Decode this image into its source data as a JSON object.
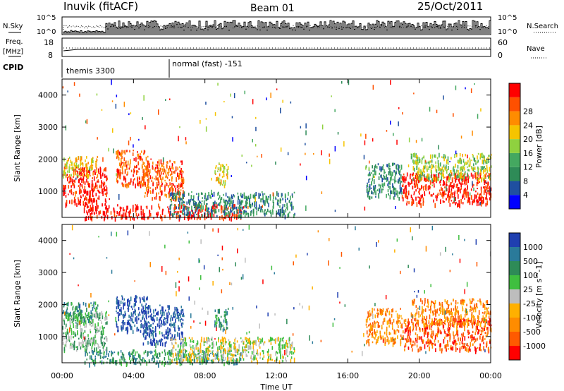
{
  "header": {
    "radar": "Inuvik (fitACF)",
    "beam": "Beam 01",
    "date": "25/Oct/2011"
  },
  "nsky_panel": {
    "left_label": "N.Sky",
    "left_ticks": [
      "10^5",
      "10^0"
    ],
    "right_ticks": [
      "10^5",
      "10^0"
    ],
    "right_label": "N.Search"
  },
  "freq_panel": {
    "left_label_top": "Freq.",
    "left_label_bottom": "[MHz]",
    "left_ticks": [
      "18",
      "8"
    ],
    "right_ticks": [
      "60",
      "0"
    ],
    "right_label": "Nave"
  },
  "cpid_panel": {
    "label": "CPID",
    "segments": [
      {
        "name": "themis 3300",
        "start_hour": 0
      },
      {
        "name": "normal (fast) -151",
        "start_hour": 6
      }
    ]
  },
  "x_axis": {
    "label": "Time UT",
    "ticks": [
      "00:00",
      "04:00",
      "08:00",
      "12:00",
      "16:00",
      "20:00",
      "00:00"
    ],
    "range_hours": [
      0,
      24
    ]
  },
  "colors": {
    "power": [
      "#0000ff",
      "#1f4fa0",
      "#2e8b57",
      "#44a860",
      "#8fd13f",
      "#f5c400",
      "#ff8c00",
      "#ff5000",
      "#ff0000"
    ],
    "velocity": [
      "#ff0000",
      "#ff5a00",
      "#ff8c00",
      "#ffb000",
      "#bdbdbd",
      "#3fbf3f",
      "#2e8b57",
      "#2a7a9a",
      "#1f3fb0"
    ]
  },
  "chart_data": [
    {
      "type": "heatmap",
      "panel": "power",
      "ylabel": "Slant Range [km]",
      "ylim": [
        180,
        4500
      ],
      "yticks": [
        1000,
        2000,
        3000,
        4000
      ],
      "xlim": [
        0,
        24
      ],
      "colorbar": {
        "label": "Power [dB]",
        "ticks": [
          "4",
          "8",
          "12",
          "16",
          "20",
          "24",
          "28"
        ]
      },
      "regions": [
        {
          "t0": 0.0,
          "t1": 2.5,
          "r0": 600,
          "r1": 1800,
          "level": 8
        },
        {
          "t0": 0.0,
          "t1": 2.0,
          "r0": 1500,
          "r1": 2100,
          "level": 5
        },
        {
          "t0": 1.2,
          "t1": 10.0,
          "r0": 180,
          "r1": 600,
          "level": 8
        },
        {
          "t0": 3.0,
          "t1": 4.8,
          "r0": 1200,
          "r1": 2300,
          "level": 7
        },
        {
          "t0": 4.5,
          "t1": 6.8,
          "r0": 800,
          "r1": 2000,
          "level": 7
        },
        {
          "t0": 8.5,
          "t1": 9.3,
          "r0": 1200,
          "r1": 1900,
          "level": 5
        },
        {
          "t0": 6.0,
          "t1": 13.0,
          "r0": 250,
          "r1": 1000,
          "level": 2
        },
        {
          "t0": 19.0,
          "t1": 24.0,
          "r0": 600,
          "r1": 1600,
          "level": 8
        },
        {
          "t0": 19.5,
          "t1": 24.0,
          "r0": 1400,
          "r1": 2200,
          "level": 4
        },
        {
          "t0": 17.0,
          "t1": 19.0,
          "r0": 800,
          "r1": 1900,
          "level": 2
        }
      ]
    },
    {
      "type": "heatmap",
      "panel": "velocity",
      "ylabel": "Slant Range [km]",
      "ylim": [
        180,
        4500
      ],
      "yticks": [
        1000,
        2000,
        3000,
        4000
      ],
      "xlim": [
        0,
        24
      ],
      "colorbar": {
        "label": "Velocity [m s^-1]",
        "ticks": [
          "1000",
          "500",
          "100",
          "25",
          "-25",
          "-100",
          "-500",
          "-1000"
        ]
      },
      "regions": [
        {
          "t0": 0.0,
          "t1": 2.5,
          "r0": 600,
          "r1": 1800,
          "level": 5
        },
        {
          "t0": 0.0,
          "t1": 2.0,
          "r0": 1500,
          "r1": 2100,
          "level": 6
        },
        {
          "t0": 1.2,
          "t1": 10.0,
          "r0": 180,
          "r1": 600,
          "level": 6
        },
        {
          "t0": 3.0,
          "t1": 4.8,
          "r0": 1200,
          "r1": 2300,
          "level": 8
        },
        {
          "t0": 4.5,
          "t1": 6.8,
          "r0": 800,
          "r1": 2000,
          "level": 8
        },
        {
          "t0": 8.5,
          "t1": 9.3,
          "r0": 1200,
          "r1": 1900,
          "level": 6
        },
        {
          "t0": 6.0,
          "t1": 13.0,
          "r0": 250,
          "r1": 1000,
          "level": 4
        },
        {
          "t0": 19.0,
          "t1": 24.0,
          "r0": 600,
          "r1": 1600,
          "level": 1
        },
        {
          "t0": 19.5,
          "t1": 24.0,
          "r0": 1400,
          "r1": 2200,
          "level": 2
        },
        {
          "t0": 17.0,
          "t1": 19.0,
          "r0": 800,
          "r1": 1900,
          "level": 2
        }
      ]
    }
  ]
}
